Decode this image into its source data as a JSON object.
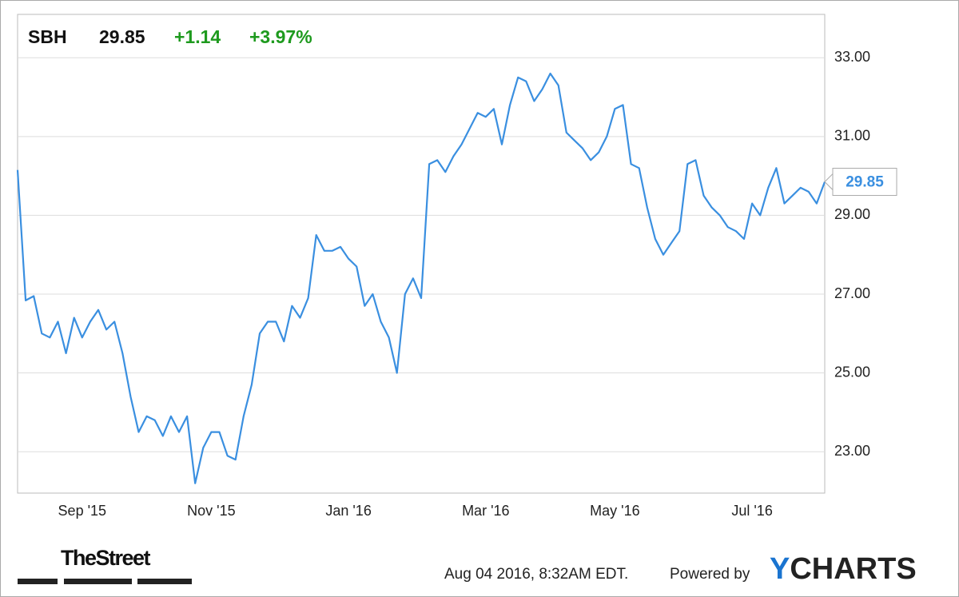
{
  "chart_data": {
    "type": "line",
    "ticker": "SBH",
    "price": "29.85",
    "change": "+1.14",
    "change_pct": "+3.97%",
    "categories": [
      null,
      null,
      null,
      null,
      null,
      null,
      null,
      null,
      "Sep '15",
      null,
      null,
      null,
      null,
      null,
      null,
      null,
      null,
      null,
      null,
      null,
      null,
      null,
      null,
      null,
      "Nov '15",
      null,
      null,
      null,
      null,
      null,
      null,
      null,
      null,
      null,
      null,
      null,
      null,
      null,
      null,
      null,
      null,
      "Jan '16",
      null,
      null,
      null,
      null,
      null,
      null,
      null,
      null,
      null,
      null,
      null,
      null,
      null,
      null,
      null,
      null,
      "Mar '16",
      null,
      null,
      null,
      null,
      null,
      null,
      null,
      null,
      null,
      null,
      null,
      null,
      null,
      null,
      null,
      "May '16",
      null,
      null,
      null,
      null,
      null,
      null,
      null,
      null,
      null,
      null,
      null,
      null,
      null,
      null,
      null,
      null,
      "Jul '16",
      null,
      null,
      null,
      null,
      null,
      null,
      null,
      null,
      null
    ],
    "series": [
      {
        "name": "SBH",
        "color": "#3a8fe0",
        "values": [
          30.15,
          26.84,
          26.95,
          26.0,
          25.9,
          26.3,
          25.5,
          26.4,
          25.9,
          26.3,
          26.6,
          26.1,
          26.3,
          25.5,
          24.4,
          23.5,
          23.9,
          23.8,
          23.4,
          23.9,
          23.5,
          23.9,
          22.2,
          23.1,
          23.5,
          23.5,
          22.9,
          22.8,
          23.9,
          24.7,
          26.0,
          26.3,
          26.3,
          25.8,
          26.7,
          26.4,
          26.9,
          28.5,
          28.1,
          28.1,
          28.2,
          27.9,
          27.7,
          26.7,
          27.0,
          26.3,
          25.9,
          25.0,
          27.0,
          27.4,
          26.9,
          30.3,
          30.4,
          30.1,
          30.5,
          30.8,
          31.2,
          31.6,
          31.5,
          31.7,
          30.8,
          31.8,
          32.5,
          32.4,
          31.9,
          32.2,
          32.6,
          32.3,
          31.1,
          30.9,
          30.7,
          30.4,
          30.6,
          31.0,
          31.7,
          31.8,
          30.3,
          30.2,
          29.2,
          28.4,
          28.0,
          28.3,
          28.6,
          30.3,
          30.4,
          29.5,
          29.2,
          29.0,
          28.7,
          28.6,
          28.4,
          29.3,
          29.0,
          29.7,
          30.2,
          29.3,
          29.5,
          29.7,
          29.6,
          29.3,
          29.85
        ]
      }
    ],
    "ylim": [
      21.95,
      34.1
    ],
    "yticks": [
      {
        "value": 23,
        "label": "23.00"
      },
      {
        "value": 25,
        "label": "25.00"
      },
      {
        "value": 27,
        "label": "27.00"
      },
      {
        "value": 29,
        "label": "29.00"
      },
      {
        "value": 31,
        "label": "31.00"
      },
      {
        "value": 33,
        "label": "33.00"
      }
    ],
    "grid": true,
    "timestamp": "Aug 04 2016, 8:32AM EDT.",
    "powered_by": "Powered by",
    "brand": "YCHARTS",
    "source_logo": "TheStreet"
  }
}
